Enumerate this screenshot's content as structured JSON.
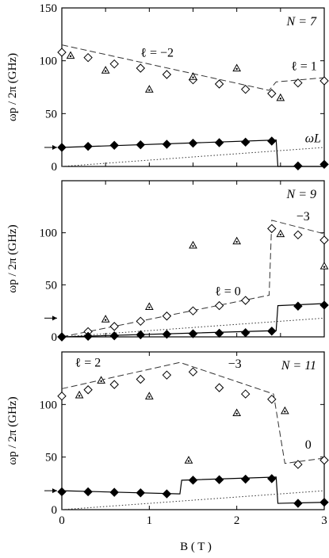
{
  "chart_data": [
    {
      "type": "scatter",
      "panel_label": "N = 7",
      "xlabel": "B ( T )",
      "ylabel": "ωp / 2π (GHz)",
      "xlim": [
        0,
        3
      ],
      "ylim": [
        0,
        150
      ],
      "yticks": [
        0,
        50,
        100,
        150
      ],
      "xticks": [
        0,
        0.5,
        1,
        1.5,
        2,
        2.5,
        3
      ],
      "annotations": [
        {
          "text": "ℓ = −2",
          "x": 0.9,
          "y": 104
        },
        {
          "text": "ℓ = 1",
          "x": 2.62,
          "y": 91
        },
        {
          "text": "ωL",
          "x": 2.78,
          "y": 23
        }
      ],
      "series": [
        {
          "marker": "open-diamond",
          "x": [
            0,
            0.3,
            0.6,
            0.9,
            1.2,
            1.5,
            1.8,
            2.1,
            2.4,
            2.7,
            3.0
          ],
          "y": [
            108,
            103,
            97,
            93,
            87,
            82,
            78,
            73,
            69,
            79,
            81
          ]
        },
        {
          "marker": "triangle",
          "x": [
            0.1,
            0.5,
            1.0,
            1.5,
            2.0,
            2.5
          ],
          "y": [
            105,
            91,
            73,
            85,
            93,
            65
          ]
        },
        {
          "marker": "filled-diamond",
          "x": [
            0,
            0.3,
            0.6,
            0.9,
            1.2,
            1.5,
            1.8,
            2.1,
            2.4,
            2.7,
            3.0
          ],
          "y": [
            18,
            19,
            20,
            20.5,
            21,
            22,
            22.5,
            23,
            24,
            0.5,
            2
          ]
        },
        {
          "line": "dashed",
          "x": [
            0,
            2.37,
            2.45,
            3.0
          ],
          "y": [
            115,
            72,
            80,
            84
          ]
        },
        {
          "line": "solid",
          "x": [
            0,
            2.45,
            2.47,
            3.0
          ],
          "y": [
            18,
            25,
            0,
            0
          ]
        },
        {
          "line": "dotted",
          "x": [
            0,
            3.0
          ],
          "y": [
            0,
            18
          ]
        }
      ]
    },
    {
      "type": "scatter",
      "panel_label": "N = 9",
      "xlabel": "B ( T )",
      "ylabel": "ωp / 2π (GHz)",
      "xlim": [
        0,
        3
      ],
      "ylim": [
        0,
        150
      ],
      "yticks": [
        0,
        50,
        100
      ],
      "xticks": [
        0,
        0.5,
        1,
        1.5,
        2,
        2.5,
        3
      ],
      "annotations": [
        {
          "text": "ℓ = 0",
          "x": 1.75,
          "y": 40
        },
        {
          "text": "−3",
          "x": 2.68,
          "y": 112
        }
      ],
      "series": [
        {
          "marker": "open-diamond",
          "x": [
            0,
            0.3,
            0.6,
            0.9,
            1.2,
            1.5,
            1.8,
            2.1,
            2.4,
            2.7,
            3.0
          ],
          "y": [
            0,
            5,
            10,
            15,
            20,
            25,
            30,
            35,
            104,
            98,
            93
          ]
        },
        {
          "marker": "triangle",
          "x": [
            0.5,
            1.0,
            1.5,
            2.0,
            2.5,
            3.0
          ],
          "y": [
            17,
            29,
            88,
            92,
            99,
            68
          ]
        },
        {
          "marker": "filled-diamond",
          "x": [
            0,
            0.3,
            0.6,
            0.9,
            1.2,
            1.5,
            1.8,
            2.1,
            2.4,
            2.7,
            3.0
          ],
          "y": [
            0,
            0.5,
            1,
            2,
            2.5,
            3,
            3.5,
            4,
            5.5,
            29.5,
            30.5
          ]
        },
        {
          "line": "dashed",
          "x": [
            0,
            2.37,
            2.4,
            3.0
          ],
          "y": [
            0,
            40,
            112,
            99
          ]
        },
        {
          "line": "solid",
          "x": [
            0,
            2.45,
            2.47,
            3.0
          ],
          "y": [
            0,
            6,
            30,
            32
          ]
        },
        {
          "line": "dotted",
          "x": [
            0,
            3.0
          ],
          "y": [
            0,
            18
          ]
        }
      ]
    },
    {
      "type": "scatter",
      "panel_label": "N = 11",
      "xlabel": "B ( T )",
      "ylabel": "ωp / 2π (GHz)",
      "xlim": [
        0,
        3
      ],
      "ylim": [
        0,
        150
      ],
      "yticks": [
        0,
        50,
        100
      ],
      "xticks": [
        0,
        1,
        2,
        3
      ],
      "annotations": [
        {
          "text": "ℓ = 2",
          "x": 0.15,
          "y": 136
        },
        {
          "text": "−3",
          "x": 1.9,
          "y": 135
        },
        {
          "text": "0",
          "x": 2.78,
          "y": 58
        }
      ],
      "series": [
        {
          "marker": "open-diamond",
          "x": [
            0,
            0.3,
            0.6,
            0.9,
            1.2,
            1.5,
            1.8,
            2.1,
            2.4,
            2.7,
            3.0
          ],
          "y": [
            108,
            114,
            119,
            124,
            128,
            131,
            116,
            110,
            105,
            43,
            47
          ]
        },
        {
          "marker": "triangle",
          "x": [
            0.2,
            0.45,
            1.0,
            1.45,
            2.0,
            2.55
          ],
          "y": [
            109,
            123,
            108,
            47,
            92,
            94
          ]
        },
        {
          "marker": "filled-diamond",
          "x": [
            0,
            0.3,
            0.6,
            0.9,
            1.2,
            1.5,
            1.8,
            2.1,
            2.4,
            2.7,
            3.0
          ],
          "y": [
            17,
            17,
            16.5,
            16,
            15,
            28,
            28.5,
            29,
            29.5,
            6,
            7
          ]
        },
        {
          "line": "dashed",
          "x": [
            0,
            1.35,
            2.42,
            2.55,
            3.0
          ],
          "y": [
            115,
            140,
            110,
            44,
            49
          ]
        },
        {
          "line": "solid",
          "x": [
            0,
            1.35,
            1.37,
            2.45,
            2.47,
            3.0
          ],
          "y": [
            18,
            15,
            28,
            31,
            6,
            7
          ]
        },
        {
          "line": "dotted",
          "x": [
            0,
            3.0
          ],
          "y": [
            0,
            18
          ]
        }
      ]
    }
  ]
}
